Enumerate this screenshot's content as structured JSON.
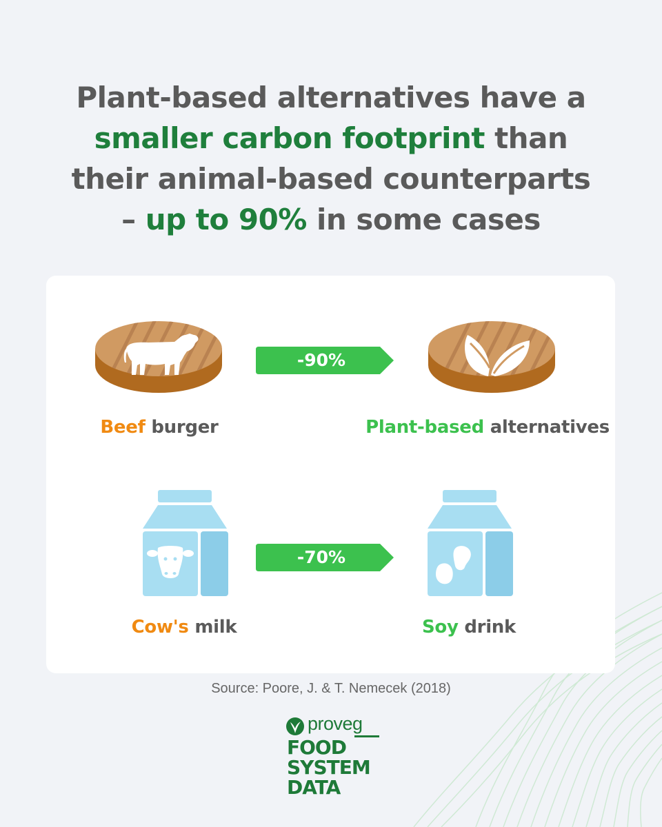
{
  "headline": {
    "line1": "Plant-based alternatives have a",
    "line2_highlight": "smaller carbon footprint",
    "line2_rest": " than",
    "line3": "their animal-based counterparts",
    "line4_prefix": "– ",
    "line4_highlight": "up to 90%",
    "line4_rest": " in some cases"
  },
  "comparisons": [
    {
      "left_icon": "beef-patty-cow-icon",
      "left_highlight": "Beef",
      "left_rest": " burger",
      "reduction": "-90%",
      "right_icon": "plant-patty-leaf-icon",
      "right_highlight": "Plant-based",
      "right_rest": " alternatives"
    },
    {
      "left_icon": "milk-carton-cow-icon",
      "left_highlight": "Cow's",
      "left_rest": " milk",
      "reduction": "-70%",
      "right_icon": "milk-carton-bean-icon",
      "right_highlight": "Soy",
      "right_rest": " drink"
    }
  ],
  "source": "Source: Poore, J. & T. Nemecek (2018)",
  "logo": {
    "brand": "proveg",
    "line1": "FOOD",
    "line2": "SYSTEM",
    "line3": "DATA"
  },
  "colors": {
    "background": "#f1f3f7",
    "headline_text": "#5a5a5a",
    "headline_highlight": "#1f7f3c",
    "animal_highlight": "#f08a12",
    "plant_highlight": "#3cc14e",
    "arrow": "#3cc14e",
    "patty_top": "#d09a62",
    "patty_side": "#b06a1f",
    "carton": "#a8def2",
    "carton_dark": "#8ccde8",
    "brand_green": "#1e7a38"
  }
}
